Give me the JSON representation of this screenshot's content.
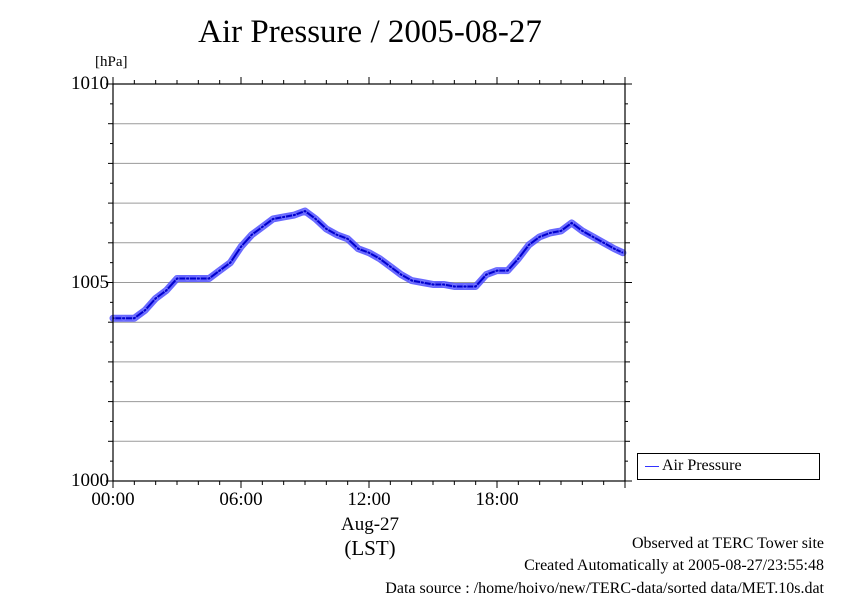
{
  "chart_data": {
    "type": "line",
    "title": "Air Pressure / 2005-08-27",
    "ylabel": "[hPa]",
    "xlabel": "(LST)",
    "date_label": "Aug-27",
    "ylim": [
      1000,
      1010
    ],
    "xlim_hours": [
      0,
      24
    ],
    "y_ticks": [
      "1000",
      "1005",
      "1010"
    ],
    "x_ticks": [
      {
        "hour": 0,
        "label": "00:00"
      },
      {
        "hour": 6,
        "label": "06:00"
      },
      {
        "hour": 12,
        "label": "12:00"
      },
      {
        "hour": 18,
        "label": "18:00"
      }
    ],
    "grid": true,
    "legend_position": "bottom-right outside",
    "series": [
      {
        "name": "Air Pressure",
        "color": "#3333ff",
        "x_hours": [
          0.0,
          0.5,
          1.0,
          1.5,
          2.0,
          2.5,
          3.0,
          3.5,
          4.0,
          4.5,
          5.0,
          5.5,
          6.0,
          6.5,
          7.0,
          7.5,
          8.0,
          8.5,
          9.0,
          9.5,
          10.0,
          10.5,
          11.0,
          11.5,
          12.0,
          12.5,
          13.0,
          13.5,
          14.0,
          14.5,
          15.0,
          15.5,
          16.0,
          16.5,
          17.0,
          17.5,
          18.0,
          18.5,
          19.0,
          19.5,
          20.0,
          20.5,
          21.0,
          21.5,
          22.0,
          22.5,
          23.0,
          23.5,
          23.9
        ],
        "values": [
          1004.1,
          1004.1,
          1004.1,
          1004.3,
          1004.6,
          1004.8,
          1005.1,
          1005.1,
          1005.1,
          1005.1,
          1005.3,
          1005.5,
          1005.9,
          1006.2,
          1006.4,
          1006.6,
          1006.65,
          1006.7,
          1006.8,
          1006.6,
          1006.35,
          1006.2,
          1006.1,
          1005.85,
          1005.75,
          1005.6,
          1005.4,
          1005.2,
          1005.05,
          1005.0,
          1004.95,
          1004.95,
          1004.9,
          1004.9,
          1004.9,
          1005.2,
          1005.3,
          1005.3,
          1005.6,
          1005.95,
          1006.15,
          1006.25,
          1006.3,
          1006.5,
          1006.3,
          1006.15,
          1006.0,
          1005.85,
          1005.75
        ]
      }
    ]
  },
  "legend": {
    "label": "Air Pressure"
  },
  "footer": {
    "site": "Observed at TERC Tower site",
    "created": "Created Automatically at 2005-08-27/23:55:48",
    "source": "Data source : /home/hoivo/new/TERC-data/sorted  data/MET.10s.dat"
  }
}
